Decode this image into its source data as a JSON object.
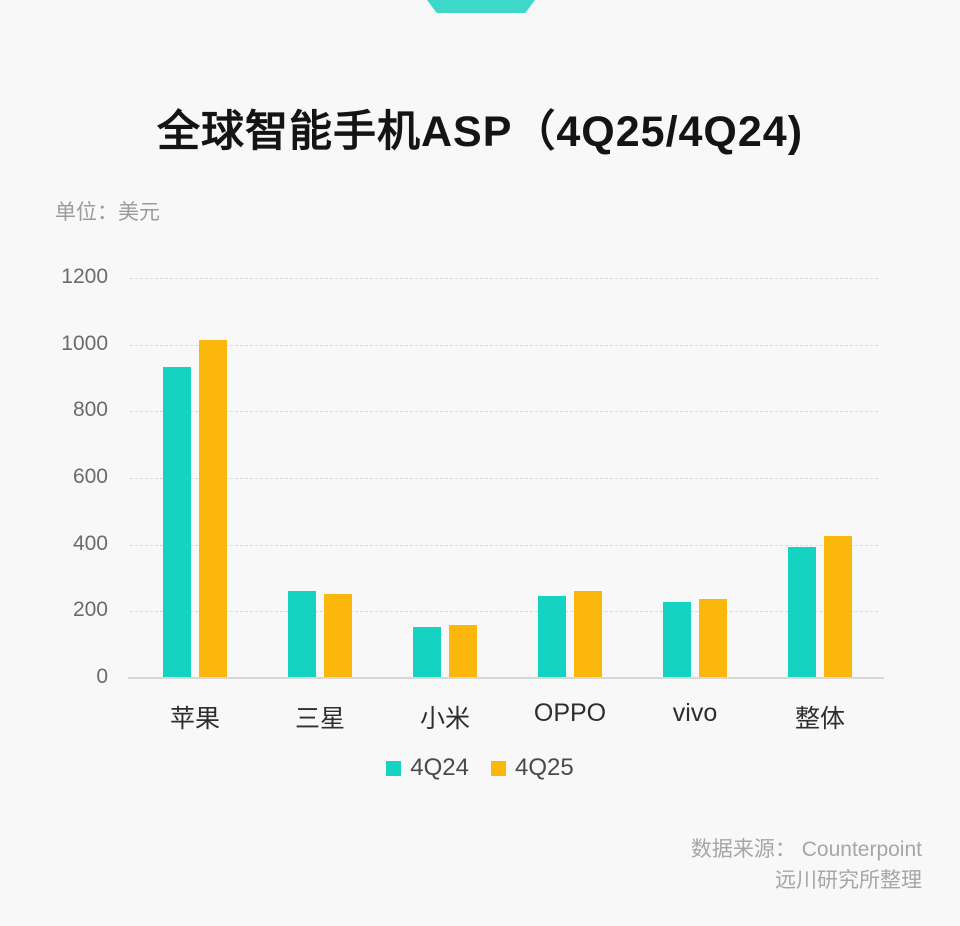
{
  "page": {
    "background": "#F8F8F8",
    "ribbon_color": "#3ED8C9"
  },
  "header": {
    "title": "全球智能手机ASP（4Q25/4Q24)",
    "unit_label": "单位：美元"
  },
  "chart_data": {
    "type": "bar",
    "title": "全球智能手机ASP（4Q25/4Q24)",
    "unit": "美元",
    "categories": [
      "苹果",
      "三星",
      "小米",
      "OPPO",
      "vivo",
      "整体"
    ],
    "series": [
      {
        "name": "4Q24",
        "color": "#14D3C1",
        "values": [
          930,
          257,
          150,
          242,
          226,
          389
        ]
      },
      {
        "name": "4Q25",
        "color": "#FBB70B",
        "values": [
          1010,
          248,
          156,
          257,
          234,
          424
        ]
      }
    ],
    "ylim": [
      0,
      1200
    ],
    "yticks": [
      0,
      200,
      400,
      600,
      800,
      1000,
      1200
    ],
    "grid": "horizontal-dashed",
    "legend_position": "bottom"
  },
  "footer": {
    "source_line1": "数据来源： Counterpoint",
    "source_line2": "远川研究所整理"
  }
}
